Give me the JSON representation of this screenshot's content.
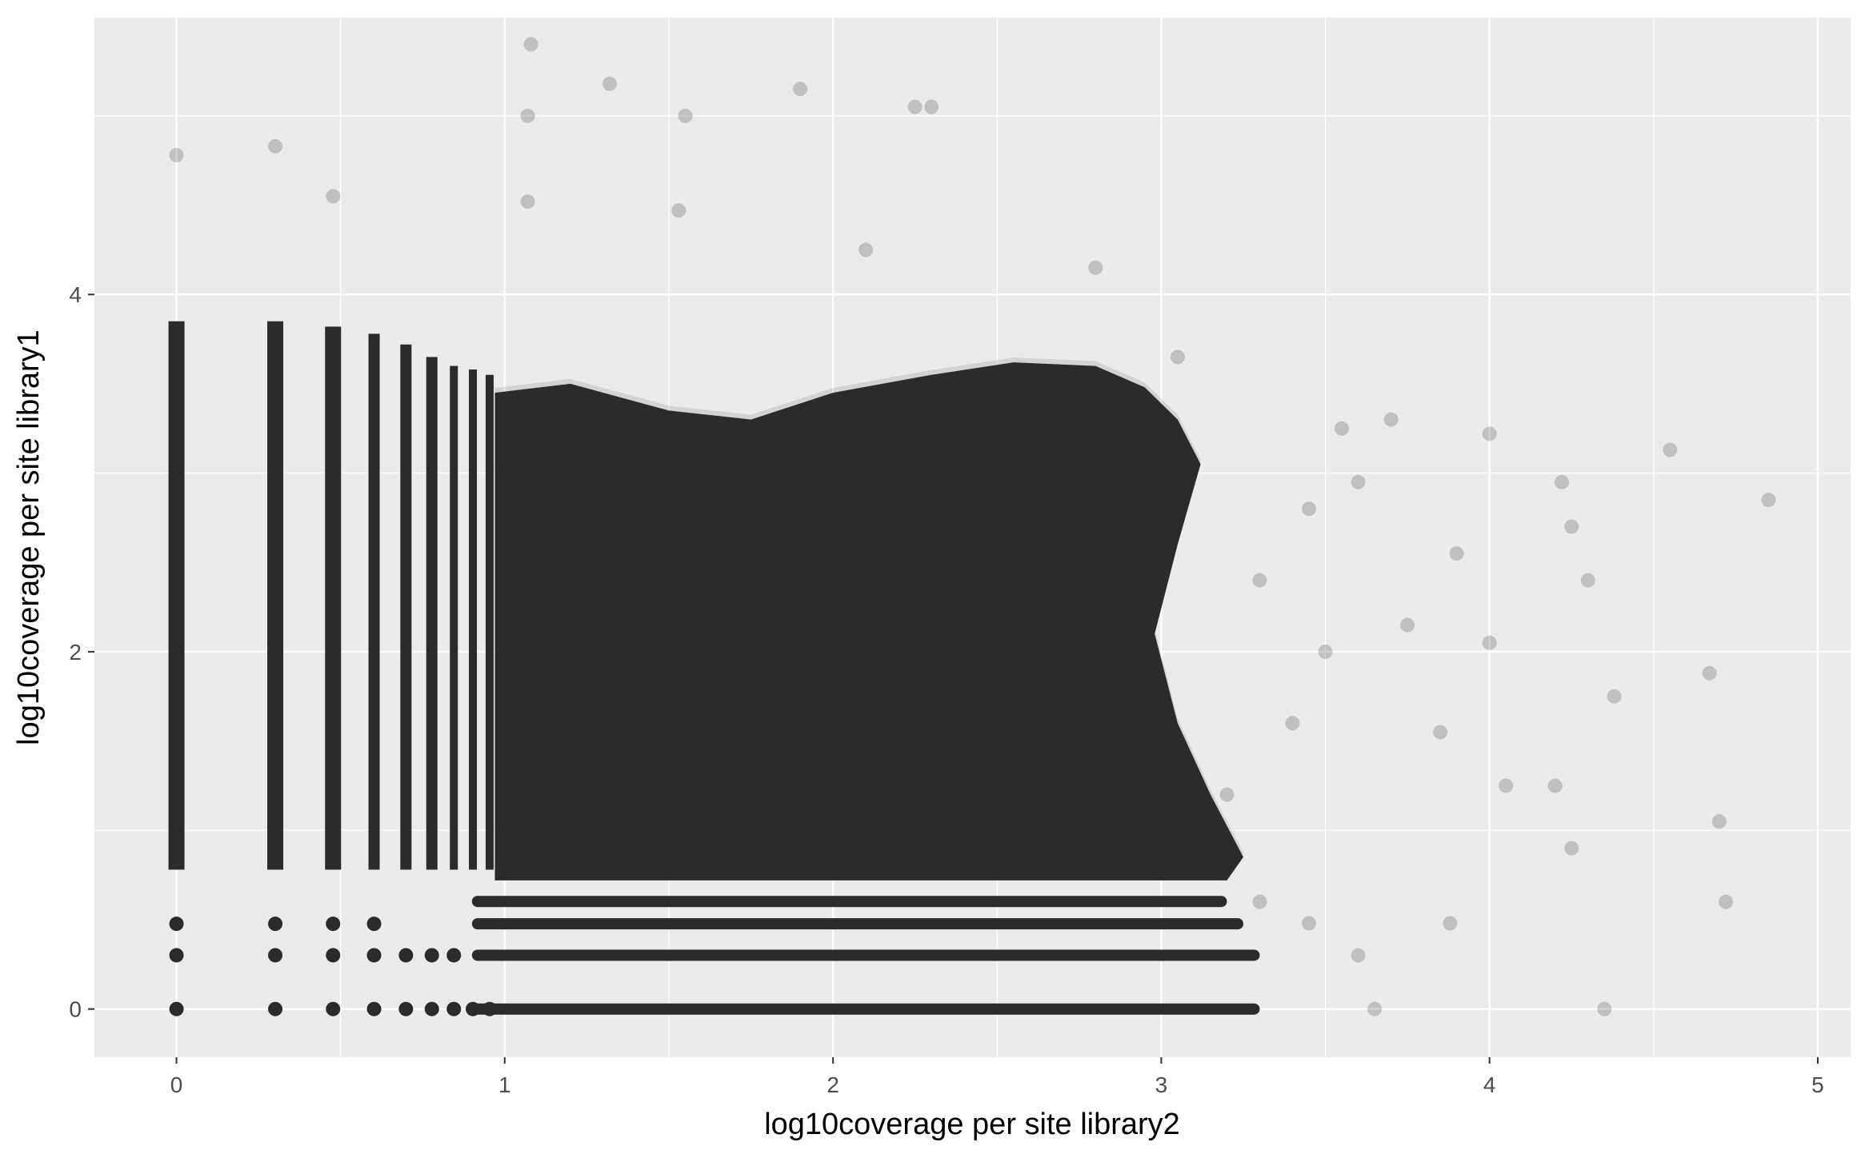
{
  "chart_data": {
    "type": "scatter",
    "title": "",
    "xlabel": "log10coverage per site library2",
    "ylabel": "log10coverage per site library1",
    "xlim": [
      -0.25,
      5.1
    ],
    "ylim": [
      -0.27,
      5.55
    ],
    "x_ticks": [
      0,
      1,
      2,
      3,
      4,
      5
    ],
    "x_tick_labels": [
      "0",
      "1",
      "2",
      "3",
      "4",
      "5"
    ],
    "y_ticks": [
      0,
      2,
      4
    ],
    "y_tick_labels": [
      "0",
      "2",
      "4"
    ],
    "grid": true,
    "legend": "none",
    "point_color": "#2b2b2b",
    "panel_color": "#ebebeb",
    "grid_color": "#ffffff",
    "dense_region": {
      "x_range": [
        0.97,
        3.2
      ],
      "y_range": [
        0.7,
        3.6
      ],
      "note": "dense overplotted cloud"
    },
    "series": [
      {
        "values": [
          {
            "x": 0.0,
            "y": 0.0
          },
          {
            "x": 0.301,
            "y": 0.0
          },
          {
            "x": 0.477,
            "y": 0.0
          },
          {
            "x": 0.602,
            "y": 0.0
          },
          {
            "x": 0.699,
            "y": 0.0
          },
          {
            "x": 0.778,
            "y": 0.0
          },
          {
            "x": 0.845,
            "y": 0.0
          },
          {
            "x": 0.903,
            "y": 0.0
          },
          {
            "x": 0.954,
            "y": 0.0
          },
          {
            "x": 0.0,
            "y": 0.301
          },
          {
            "x": 0.301,
            "y": 0.301
          },
          {
            "x": 0.477,
            "y": 0.301
          },
          {
            "x": 0.602,
            "y": 0.301
          },
          {
            "x": 0.699,
            "y": 0.301
          },
          {
            "x": 0.778,
            "y": 0.301
          },
          {
            "x": 0.845,
            "y": 0.301
          },
          {
            "x": 0.0,
            "y": 0.477
          },
          {
            "x": 0.301,
            "y": 0.477
          },
          {
            "x": 0.477,
            "y": 0.477
          },
          {
            "x": 0.602,
            "y": 0.477
          },
          {
            "x": 0.0,
            "y": 4.78
          },
          {
            "x": 0.301,
            "y": 4.83
          },
          {
            "x": 0.477,
            "y": 4.55
          },
          {
            "x": 1.08,
            "y": 5.4
          },
          {
            "x": 1.07,
            "y": 5.0
          },
          {
            "x": 1.32,
            "y": 5.18
          },
          {
            "x": 1.55,
            "y": 5.0
          },
          {
            "x": 1.9,
            "y": 5.15
          },
          {
            "x": 2.25,
            "y": 5.05
          },
          {
            "x": 2.3,
            "y": 5.05
          },
          {
            "x": 1.07,
            "y": 4.52
          },
          {
            "x": 1.53,
            "y": 4.47
          },
          {
            "x": 2.1,
            "y": 4.25
          },
          {
            "x": 2.8,
            "y": 4.15
          },
          {
            "x": 3.05,
            "y": 3.65
          },
          {
            "x": 3.55,
            "y": 3.25
          },
          {
            "x": 3.6,
            "y": 2.95
          },
          {
            "x": 3.7,
            "y": 3.3
          },
          {
            "x": 4.0,
            "y": 3.22
          },
          {
            "x": 4.22,
            "y": 2.95
          },
          {
            "x": 4.55,
            "y": 3.13
          },
          {
            "x": 4.85,
            "y": 2.85
          },
          {
            "x": 4.25,
            "y": 2.7
          },
          {
            "x": 3.9,
            "y": 2.55
          },
          {
            "x": 3.75,
            "y": 2.15
          },
          {
            "x": 4.0,
            "y": 2.05
          },
          {
            "x": 4.3,
            "y": 2.4
          },
          {
            "x": 4.38,
            "y": 1.75
          },
          {
            "x": 4.67,
            "y": 1.88
          },
          {
            "x": 3.85,
            "y": 1.55
          },
          {
            "x": 4.05,
            "y": 1.25
          },
          {
            "x": 4.2,
            "y": 1.25
          },
          {
            "x": 4.7,
            "y": 1.05
          },
          {
            "x": 4.25,
            "y": 0.9
          },
          {
            "x": 4.72,
            "y": 0.6
          },
          {
            "x": 3.88,
            "y": 0.48
          },
          {
            "x": 3.65,
            "y": 0.0
          },
          {
            "x": 4.35,
            "y": 0.0
          },
          {
            "x": 3.3,
            "y": 0.6
          },
          {
            "x": 3.45,
            "y": 0.48
          },
          {
            "x": 3.6,
            "y": 0.3
          },
          {
            "x": 3.2,
            "y": 1.2
          },
          {
            "x": 3.4,
            "y": 1.6
          },
          {
            "x": 3.5,
            "y": 2.0
          },
          {
            "x": 3.3,
            "y": 2.4
          },
          {
            "x": 3.45,
            "y": 2.8
          }
        ]
      }
    ]
  }
}
